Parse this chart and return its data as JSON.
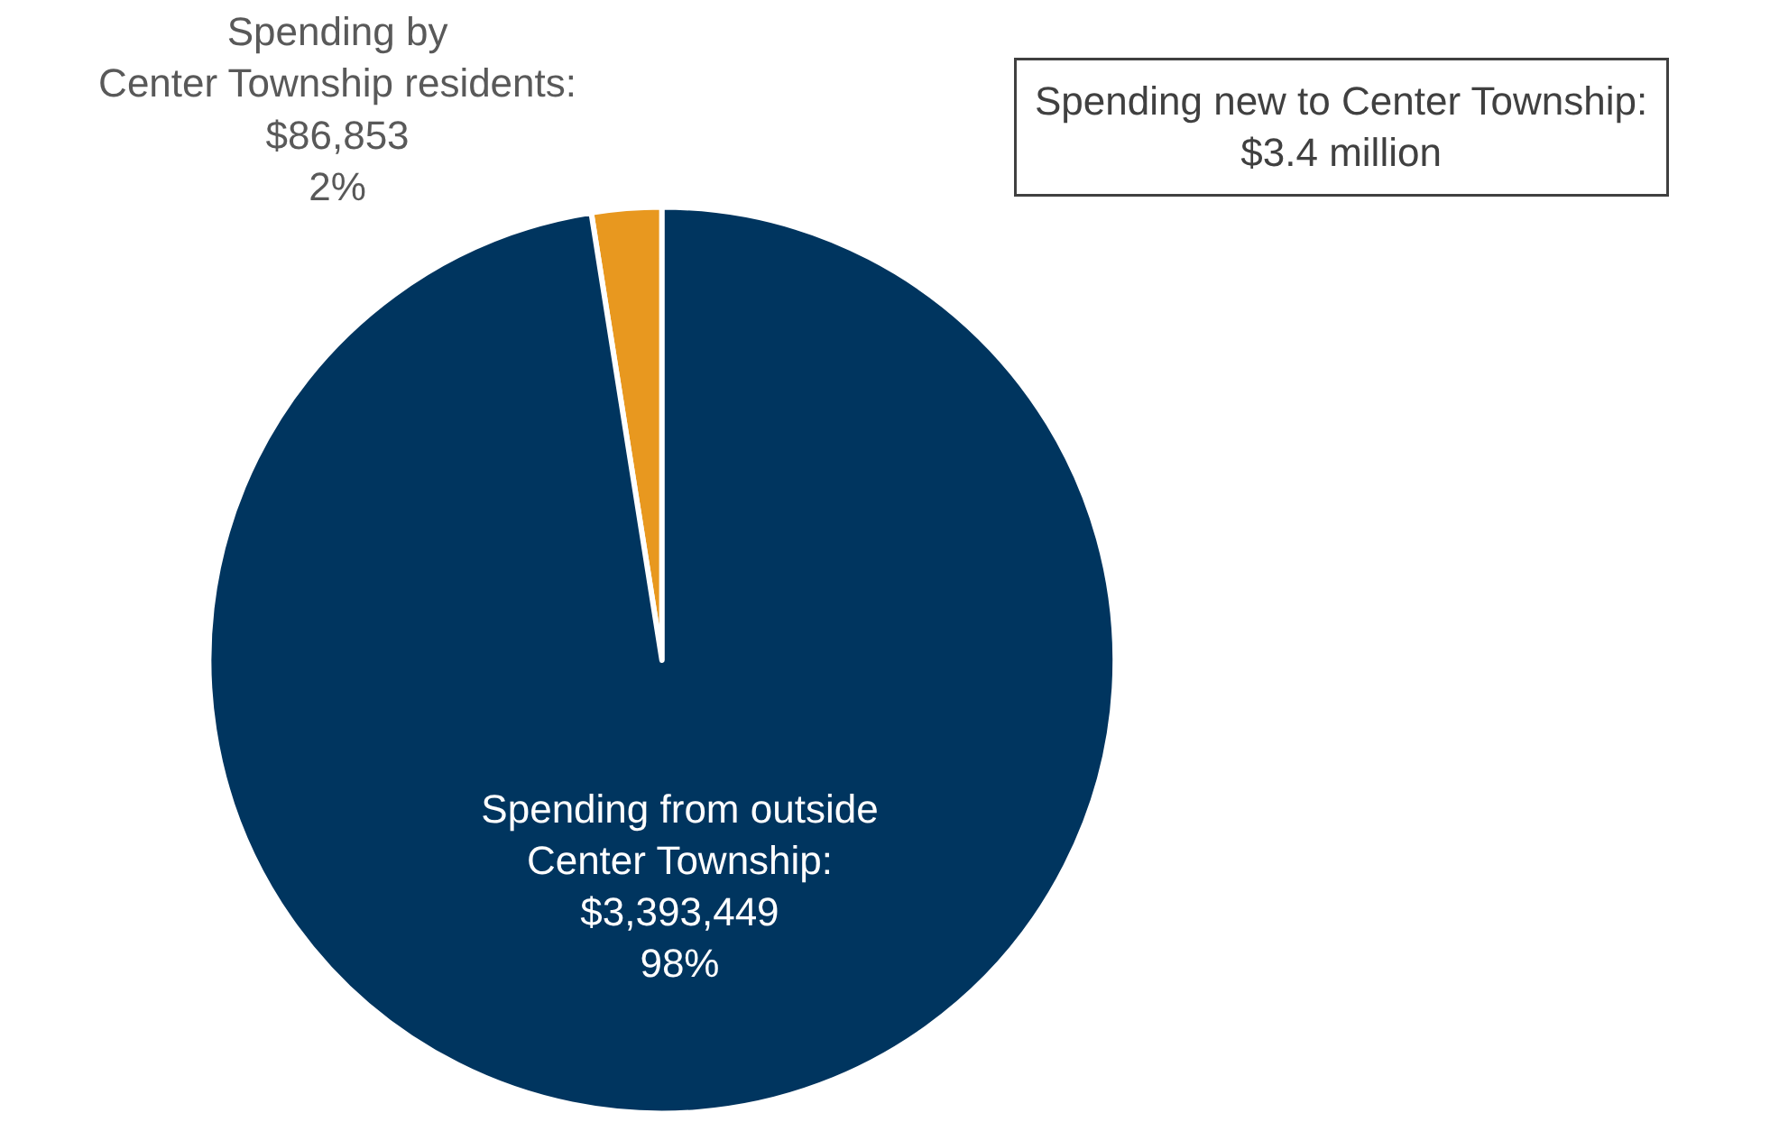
{
  "chart_data": {
    "type": "pie",
    "categories": [
      "Spending by\nCenter Township residents",
      "Spending from outside\nCenter Township"
    ],
    "values": [
      86853,
      3393449
    ],
    "value_labels": [
      ":\n$86,853\n2%",
      ":\n$3,393,449\n98%"
    ],
    "colors": [
      "#e8981f",
      "#00355f"
    ],
    "annotations": [
      "Spending new to Center Township:\n$3.4 million"
    ],
    "legend": false
  }
}
